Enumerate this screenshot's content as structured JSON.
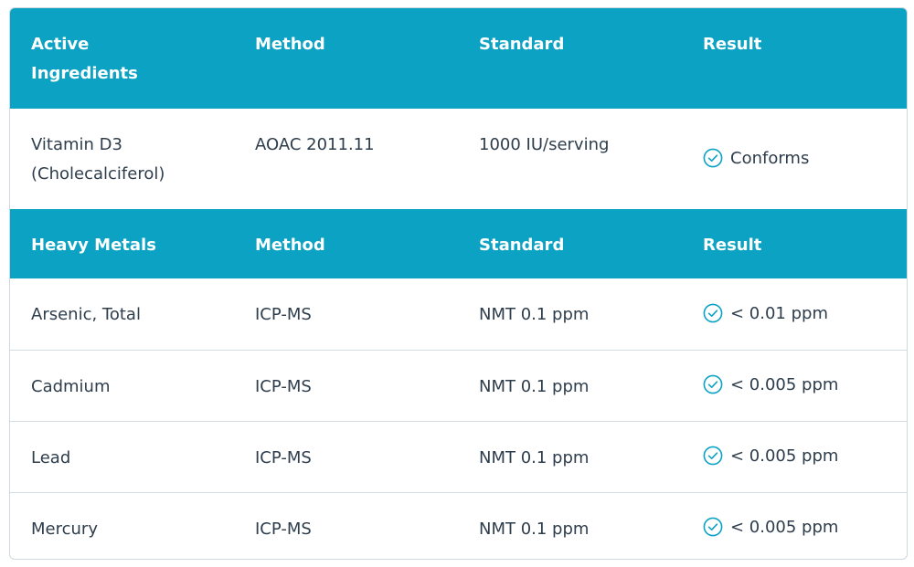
{
  "sections": [
    {
      "header": [
        "Active Ingredients",
        "Method",
        "Standard",
        "Result"
      ],
      "rows": [
        [
          "Vitamin D3 (Cholecalciferol)",
          "AOAC 2011.11",
          "1000 IU/serving",
          "Conforms"
        ]
      ]
    },
    {
      "header": [
        "Heavy Metals",
        "Method",
        "Standard",
        "Result"
      ],
      "rows": [
        [
          "Arsenic, Total",
          "ICP-MS",
          "NMT 0.1 ppm",
          "< 0.01 ppm"
        ],
        [
          "Cadmium",
          "ICP-MS",
          "NMT 0.1 ppm",
          "< 0.005 ppm"
        ],
        [
          "Lead",
          "ICP-MS",
          "NMT 0.1 ppm",
          "< 0.005 ppm"
        ],
        [
          "Mercury",
          "ICP-MS",
          "NMT 0.1 ppm",
          "< 0.005 ppm"
        ]
      ]
    }
  ]
}
